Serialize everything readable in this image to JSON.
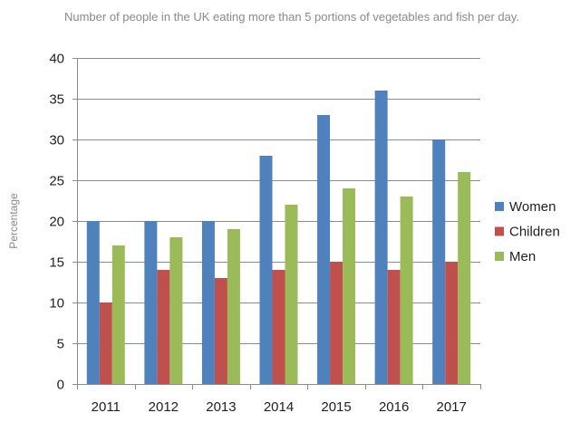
{
  "chart_data": {
    "type": "bar",
    "title": "Number of people in the UK eating more than 5 portions of vegetables and fish per day.",
    "xlabel": "",
    "ylabel": "Percentage",
    "ylim": [
      0,
      40
    ],
    "yticks": [
      0,
      5,
      10,
      15,
      20,
      25,
      30,
      35,
      40
    ],
    "grid": true,
    "legend": "right",
    "categories": [
      "2011",
      "2012",
      "2013",
      "2014",
      "2015",
      "2016",
      "2017"
    ],
    "series": [
      {
        "name": "Women",
        "color": "#4f81bd",
        "values": [
          20,
          20,
          20,
          28,
          33,
          36,
          30
        ]
      },
      {
        "name": "Children",
        "color": "#c0504d",
        "values": [
          10,
          14,
          13,
          14,
          15,
          14,
          15
        ]
      },
      {
        "name": "Men",
        "color": "#9bbb59",
        "values": [
          17,
          18,
          19,
          22,
          24,
          23,
          26
        ]
      }
    ]
  }
}
